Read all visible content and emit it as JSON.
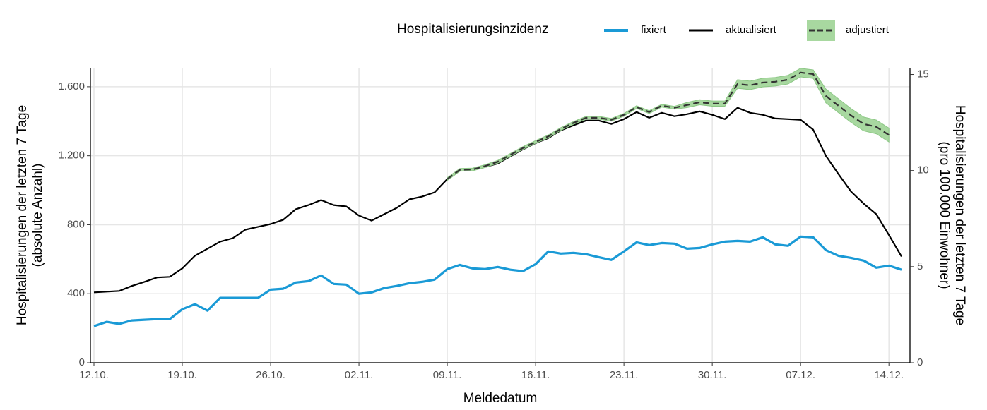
{
  "chart_data": {
    "type": "line",
    "legend_title": "Hospitalisierungsinzidenz",
    "xlabel": "Meldedatum",
    "ylabel": [
      "Hospitalisierungen der letzten 7 Tage",
      "(absolute Anzahl)"
    ],
    "y2label": [
      "Hospitalisierungen der letzten 7 Tage",
      "(pro 100.000 Einwohner)"
    ],
    "categories": [
      "12.10.",
      null,
      null,
      null,
      null,
      null,
      null,
      "19.10.",
      null,
      null,
      null,
      null,
      null,
      null,
      "26.10.",
      null,
      null,
      null,
      null,
      null,
      null,
      "02.11.",
      null,
      null,
      null,
      null,
      null,
      null,
      "09.11.",
      null,
      null,
      null,
      null,
      null,
      null,
      "16.11.",
      null,
      null,
      null,
      null,
      null,
      null,
      "23.11.",
      null,
      null,
      null,
      null,
      null,
      null,
      "30.11.",
      null,
      null,
      null,
      null,
      null,
      null,
      "07.12.",
      null,
      null,
      null,
      null,
      null,
      null,
      "14.12.",
      null
    ],
    "ylim": [
      0,
      1710
    ],
    "yticks": [
      0,
      400,
      800,
      {
        "value": 1200,
        "label": "1.200"
      },
      {
        "value": 1600,
        "label": "1.600"
      }
    ],
    "y2lim": [
      0,
      15.35
    ],
    "y2ticks": [
      0,
      5,
      10,
      15
    ],
    "grid": true,
    "series": [
      {
        "name": "fixiert",
        "color": "#1a9ad6",
        "values": [
          212,
          237,
          225,
          245,
          249,
          253,
          253,
          310,
          339,
          302,
          376,
          376,
          376,
          376,
          424,
          429,
          465,
          473,
          506,
          457,
          453,
          400,
          408,
          433,
          445,
          461,
          469,
          482,
          543,
          567,
          547,
          543,
          555,
          539,
          531,
          571,
          645,
          633,
          637,
          629,
          612,
          596,
          645,
          698,
          682,
          694,
          690,
          661,
          665,
          686,
          702,
          706,
          702,
          727,
          686,
          678,
          731,
          727,
          653,
          620,
          608,
          592,
          551,
          563,
          539
        ]
      },
      {
        "name": "aktualisiert",
        "color": "#000000",
        "values": [
          408,
          412,
          416,
          445,
          469,
          494,
          498,
          547,
          620,
          661,
          702,
          722,
          771,
          788,
          804,
          829,
          890,
          914,
          943,
          914,
          906,
          853,
          824,
          861,
          898,
          947,
          963,
          988,
          1065,
          1118,
          1118,
          1135,
          1155,
          1196,
          1237,
          1273,
          1302,
          1347,
          1376,
          1404,
          1404,
          1384,
          1412,
          1453,
          1420,
          1449,
          1429,
          1441,
          1457,
          1437,
          1412,
          1478,
          1449,
          1437,
          1416,
          1412,
          1408,
          1351,
          1200,
          1094,
          992,
          922,
          861,
          740,
          616
        ]
      },
      {
        "name": "adjustiert",
        "color": "#333333",
        "band_color": "#a8d8a0",
        "dashed": true,
        "values": [
          null,
          null,
          null,
          null,
          null,
          null,
          null,
          null,
          null,
          null,
          null,
          null,
          null,
          null,
          null,
          null,
          null,
          null,
          null,
          null,
          null,
          null,
          null,
          null,
          null,
          null,
          null,
          null,
          1065,
          1118,
          1120,
          1140,
          1165,
          1205,
          1245,
          1280,
          1312,
          1355,
          1390,
          1420,
          1420,
          1408,
          1437,
          1482,
          1453,
          1490,
          1478,
          1494,
          1510,
          1502,
          1502,
          1616,
          1608,
          1624,
          1629,
          1641,
          1682,
          1673,
          1547,
          1490,
          1433,
          1384,
          1367,
          1320,
          null
        ],
        "upper": [
          null,
          null,
          null,
          null,
          null,
          null,
          null,
          null,
          null,
          null,
          null,
          null,
          null,
          null,
          null,
          null,
          null,
          null,
          null,
          null,
          null,
          null,
          null,
          null,
          null,
          null,
          null,
          null,
          1073,
          1126,
          1128,
          1148,
          1173,
          1213,
          1253,
          1288,
          1320,
          1363,
          1398,
          1428,
          1428,
          1416,
          1445,
          1490,
          1461,
          1498,
          1486,
          1509,
          1525,
          1517,
          1517,
          1641,
          1633,
          1649,
          1654,
          1666,
          1707,
          1698,
          1587,
          1530,
          1473,
          1424,
          1407,
          1360,
          null
        ],
        "lower": [
          null,
          null,
          null,
          null,
          null,
          null,
          null,
          null,
          null,
          null,
          null,
          null,
          null,
          null,
          null,
          null,
          null,
          null,
          null,
          null,
          null,
          null,
          null,
          null,
          null,
          null,
          null,
          null,
          1057,
          1110,
          1112,
          1132,
          1157,
          1197,
          1237,
          1272,
          1304,
          1347,
          1382,
          1412,
          1412,
          1400,
          1429,
          1474,
          1445,
          1482,
          1470,
          1479,
          1495,
          1487,
          1487,
          1591,
          1583,
          1599,
          1604,
          1616,
          1657,
          1648,
          1507,
          1450,
          1393,
          1344,
          1327,
          1280,
          null
        ]
      }
    ]
  }
}
